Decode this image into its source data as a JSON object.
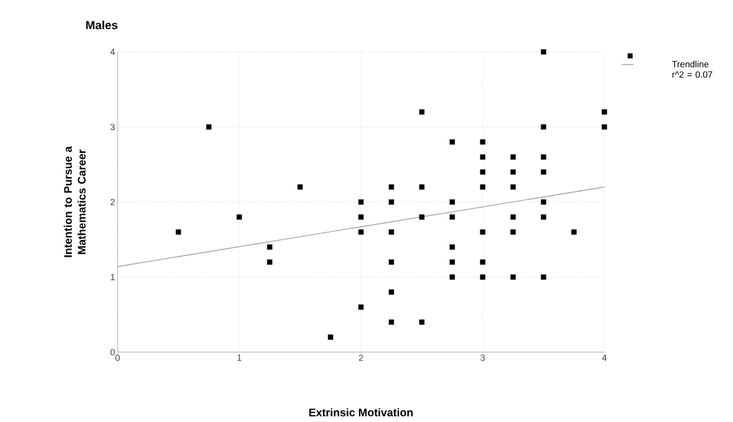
{
  "chart_data": {
    "type": "scatter",
    "title": "Males",
    "xlabel": "Extrinsic Motivation",
    "ylabel": "Intention to Pursue a Mathematics Career",
    "xlim": [
      0,
      4
    ],
    "ylim": [
      0,
      4
    ],
    "xticks": [
      0,
      1,
      2,
      3,
      4
    ],
    "yticks": [
      0,
      1,
      2,
      3,
      4
    ],
    "grid": true,
    "legend": "top right",
    "series": [
      {
        "marker": "square",
        "color": "#000000",
        "x": [
          0.5,
          0.75,
          1.0,
          1.25,
          1.25,
          1.5,
          1.75,
          2.0,
          2.0,
          2.0,
          2.0,
          2.25,
          2.25,
          2.25,
          2.25,
          2.25,
          2.25,
          2.5,
          2.5,
          2.5,
          2.5,
          2.75,
          2.75,
          2.75,
          2.75,
          2.75,
          2.75,
          3.0,
          3.0,
          3.0,
          3.0,
          3.0,
          3.0,
          3.0,
          3.25,
          3.25,
          3.25,
          3.25,
          3.25,
          3.25,
          3.5,
          3.5,
          3.5,
          3.5,
          3.5,
          3.5,
          3.5,
          3.75,
          4.0,
          4.0
        ],
        "values": [
          1.6,
          3.0,
          1.8,
          1.4,
          1.2,
          2.2,
          0.2,
          2.0,
          1.8,
          1.6,
          0.6,
          2.2,
          2.0,
          1.6,
          1.2,
          0.8,
          0.4,
          3.2,
          2.2,
          1.8,
          0.4,
          2.8,
          2.0,
          1.8,
          1.4,
          1.2,
          1.0,
          2.8,
          2.6,
          2.4,
          2.2,
          1.6,
          1.2,
          1.0,
          2.6,
          2.4,
          2.2,
          1.8,
          1.6,
          1.0,
          4.0,
          3.0,
          2.6,
          2.4,
          2.0,
          1.8,
          1.0,
          1.6,
          3.2,
          3.0
        ]
      },
      {
        "type": "line",
        "name": "Trendline r^2 = 0.07",
        "color": "#999999",
        "x": [
          0,
          4
        ],
        "values": [
          1.14,
          2.2
        ],
        "marker": "none",
        "line_style": "solid"
      }
    ]
  }
}
